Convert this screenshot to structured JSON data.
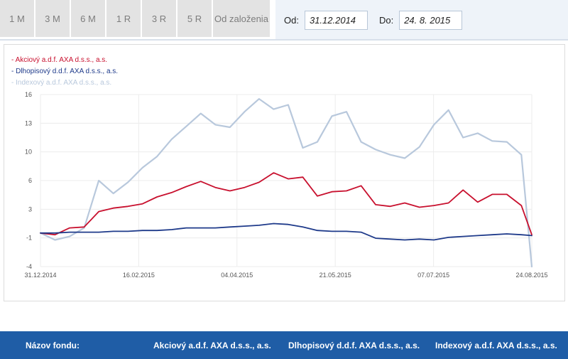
{
  "tabs": [
    {
      "label": "1 M"
    },
    {
      "label": "3 M"
    },
    {
      "label": "6 M"
    },
    {
      "label": "1 R"
    },
    {
      "label": "3 R"
    },
    {
      "label": "5 R"
    },
    {
      "label": "Od založenia"
    }
  ],
  "range": {
    "from_label": "Od:",
    "from_value": "31.12.2014",
    "to_label": "Do:",
    "to_value": "24. 8. 2015"
  },
  "table_header": {
    "col0": "Názov fondu:",
    "col1": "Akciový a.d.f. AXA d.s.s., a.s.",
    "col2": "Dlhopisový d.d.f. AXA d.s.s., a.s.",
    "col3": "Indexový a.d.f. AXA d.s.s., a.s."
  },
  "chart_data": {
    "type": "line",
    "xlabel": "",
    "ylabel": "",
    "ylim": [
      -4,
      16
    ],
    "y_ticks": [
      "16",
      "13",
      "10",
      "6",
      "3",
      "-1",
      "-4"
    ],
    "x_ticks": [
      "31.12.2014",
      "16.02.2015",
      "04.04.2015",
      "21.05.2015",
      "07.07.2015",
      "24.08.2015"
    ],
    "grid": true,
    "legend_position": "top-left",
    "x": [
      "2014-12-31",
      "2015-01-07",
      "2015-01-14",
      "2015-01-21",
      "2015-01-28",
      "2015-02-04",
      "2015-02-11",
      "2015-02-18",
      "2015-02-25",
      "2015-03-04",
      "2015-03-11",
      "2015-03-18",
      "2015-03-25",
      "2015-04-01",
      "2015-04-08",
      "2015-04-15",
      "2015-04-22",
      "2015-04-29",
      "2015-05-06",
      "2015-05-13",
      "2015-05-20",
      "2015-05-27",
      "2015-06-03",
      "2015-06-10",
      "2015-06-17",
      "2015-06-24",
      "2015-07-01",
      "2015-07-08",
      "2015-07-15",
      "2015-07-22",
      "2015-07-29",
      "2015-08-05",
      "2015-08-12",
      "2015-08-19",
      "2015-08-24"
    ],
    "series": [
      {
        "name": "Akciový a.d.f. AXA d.s.s., a.s.",
        "color": "#c8102e",
        "values": [
          -0.1,
          -0.3,
          0.5,
          0.6,
          2.4,
          2.8,
          3.0,
          3.3,
          4.1,
          4.6,
          5.3,
          5.9,
          5.2,
          4.8,
          5.2,
          5.8,
          6.9,
          6.2,
          6.4,
          4.2,
          4.7,
          4.8,
          5.4,
          3.2,
          3.0,
          3.4,
          2.9,
          3.1,
          3.4,
          4.9,
          3.5,
          4.4,
          4.4,
          3.1,
          -0.3
        ]
      },
      {
        "name": "Dlhopisový d.d.f. AXA d.s.s., a.s.",
        "color": "#1e3a8a",
        "values": [
          -0.1,
          -0.1,
          0.0,
          0.0,
          0.0,
          0.1,
          0.1,
          0.2,
          0.2,
          0.3,
          0.5,
          0.5,
          0.5,
          0.6,
          0.7,
          0.8,
          1.0,
          0.9,
          0.6,
          0.2,
          0.1,
          0.1,
          0.0,
          -0.7,
          -0.8,
          -0.9,
          -0.8,
          -0.9,
          -0.6,
          -0.5,
          -0.4,
          -0.3,
          -0.2,
          -0.3,
          -0.4
        ]
      },
      {
        "name": "Indexový a.d.f. AXA d.s.s., a.s.",
        "color": "#b8c8dc",
        "values": [
          -0.1,
          -0.9,
          -0.5,
          0.5,
          6.0,
          4.5,
          5.8,
          7.5,
          8.8,
          10.8,
          12.3,
          13.8,
          12.5,
          12.2,
          14.0,
          15.5,
          14.3,
          14.8,
          9.8,
          10.5,
          13.5,
          14.0,
          10.5,
          9.6,
          9.0,
          8.6,
          9.9,
          12.5,
          14.2,
          11.0,
          11.5,
          10.6,
          10.5,
          9.0,
          -4.0
        ]
      }
    ]
  }
}
